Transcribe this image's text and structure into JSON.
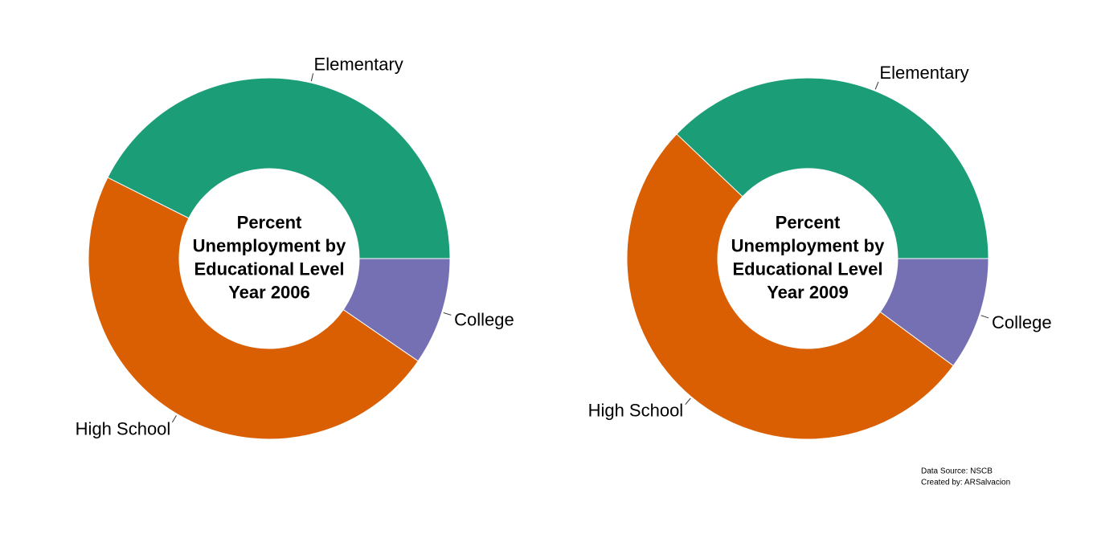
{
  "chart_data": [
    {
      "type": "donut",
      "title": [
        "Percent",
        "Unemployment by",
        "Educational Level",
        "Year 2006"
      ],
      "categories": [
        "Elementary",
        "High School",
        "College"
      ],
      "values": [
        42.6,
        47.8,
        9.6
      ],
      "colors": [
        "#1b9e77",
        "#d95f02",
        "#7570b3"
      ]
    },
    {
      "type": "donut",
      "title": [
        "Percent",
        "Unemployment by",
        "Educational Level",
        "Year 2009"
      ],
      "categories": [
        "Elementary",
        "High School",
        "College"
      ],
      "values": [
        37.9,
        52.0,
        10.1
      ],
      "colors": [
        "#1b9e77",
        "#d95f02",
        "#7570b3"
      ]
    }
  ],
  "caption": [
    "Data Source: NSCB",
    "Created by: ARSalvacion"
  ]
}
